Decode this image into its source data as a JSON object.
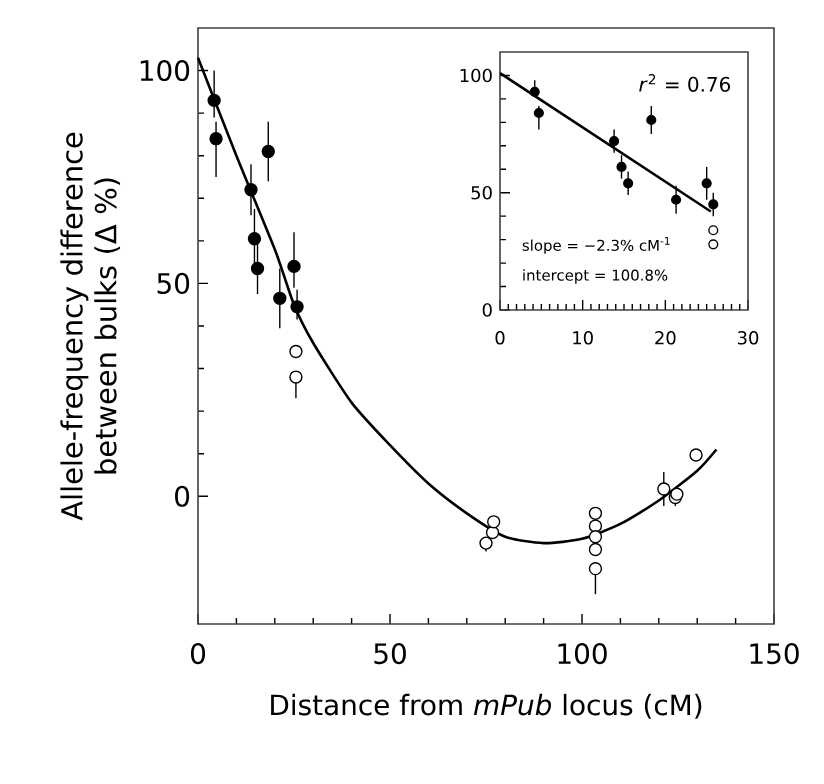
{
  "chart_data": [
    {
      "type": "scatter",
      "xlabel": "Distance from *mPub* locus (cM)",
      "ylabel": "Allele-frequency difference between bulks (Δ %)",
      "xlim": [
        0,
        150
      ],
      "ylim": [
        -30,
        110
      ],
      "xticks": [
        0,
        50,
        100,
        150
      ],
      "yticks": [
        0,
        50,
        100
      ],
      "series": [
        {
          "color": "#000000",
          "marker": "circle",
          "x": [
            4.2,
            4.7,
            13.8,
            14.7,
            15.5,
            18.3,
            21.3,
            25,
            25.8
          ],
          "values": [
            93,
            84,
            72,
            60.5,
            53.5,
            81,
            46.5,
            54,
            44.5
          ],
          "errors": [
            [
              89,
              100
            ],
            [
              75,
              88
            ],
            6,
            7,
            6,
            7,
            7,
            [
              49,
              62
            ],
            [
              41.5,
              48.5
            ]
          ]
        },
        {
          "color": "#ffffff",
          "marker": "circle",
          "x": [
            25.5,
            25.5,
            75,
            76.7,
            77,
            103.5,
            103.5,
            103.5,
            103.5,
            103.5,
            121.3,
            124.3,
            124.7,
            129.7
          ],
          "values": [
            34,
            28,
            -11,
            -8.5,
            -6,
            -4,
            -7,
            -9.5,
            -12.5,
            -17,
            1.7,
            -0.3,
            0.5,
            9.7
          ],
          "errors": [
            null,
            [
              23,
              28
            ],
            [
              -13,
              -11
            ],
            null,
            null,
            null,
            null,
            null,
            null,
            [
              -23,
              -17
            ],
            4,
            [
              -2.3,
              -0.3
            ],
            null,
            null
          ]
        },
        {
          "type": "line",
          "marker": "none",
          "color": "#000000",
          "x": [
            0,
            10,
            20,
            25,
            30,
            40,
            50,
            60,
            70,
            80,
            90,
            100,
            110,
            120,
            130,
            135
          ],
          "values": [
            103,
            80,
            58,
            45,
            36,
            22,
            12,
            3,
            -4,
            -9.5,
            -11,
            -10,
            -6.5,
            -1,
            6,
            11
          ]
        }
      ]
    },
    {
      "type": "scatter",
      "xlim": [
        0,
        30
      ],
      "ylim": [
        0,
        110
      ],
      "xticks": [
        0,
        10,
        20,
        30
      ],
      "yticks": [
        0,
        50,
        100
      ],
      "annotations": [
        "*r*$^{2}$ = 0.76",
        "slope = −2.3% cM$^{-1}$",
        "intercept = 100.8%"
      ],
      "series": [
        {
          "color": "#000000",
          "marker": "circle",
          "x": [
            4.2,
            4.7,
            13.8,
            14.7,
            15.5,
            18.3,
            21.3,
            25,
            25.8
          ],
          "values": [
            93,
            84,
            72,
            61,
            54,
            81,
            47,
            54,
            45
          ],
          "errors": [
            [
              91,
              98
            ],
            [
              77,
              87
            ],
            5,
            5,
            5,
            6,
            6,
            7,
            5
          ]
        },
        {
          "color": "#ffffff",
          "marker": "circle",
          "x": [
            25.8,
            25.8
          ],
          "values": [
            34,
            28
          ]
        },
        {
          "type": "line",
          "marker": "none",
          "color": "#000000",
          "x": [
            0,
            25.5
          ],
          "values": [
            101,
            42
          ]
        }
      ]
    }
  ]
}
